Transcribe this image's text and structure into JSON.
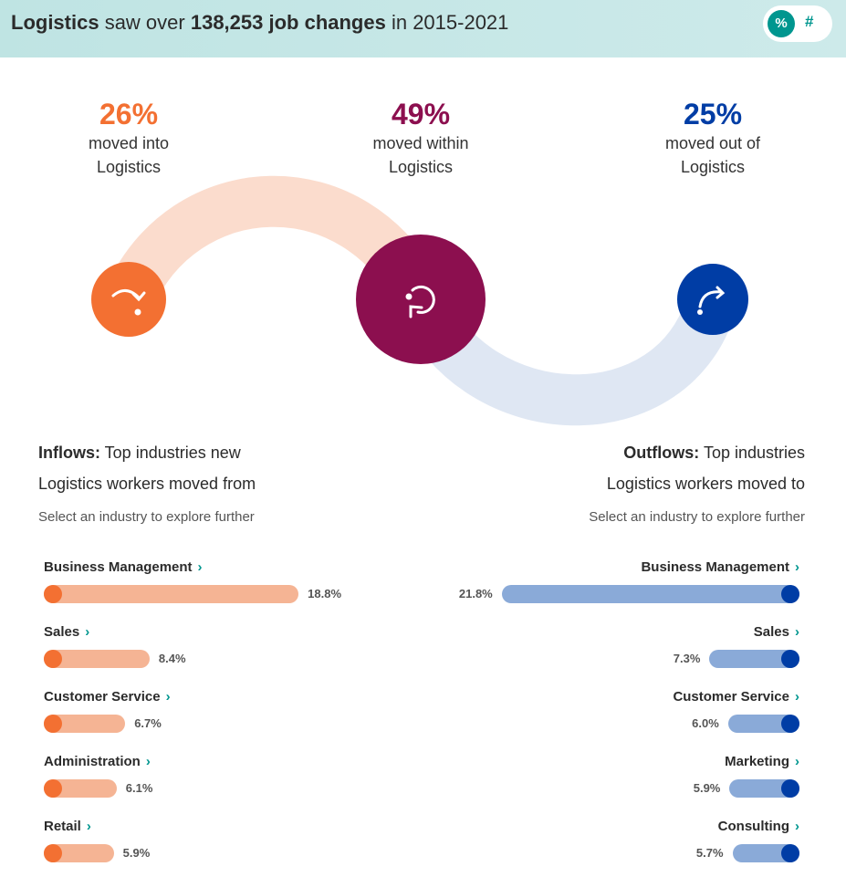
{
  "header": {
    "title_parts": [
      "Logistics",
      " saw over ",
      "138,253 job changes",
      " in 2015-2021"
    ],
    "toggle": {
      "percent": "%",
      "number": "#",
      "selected": "percent"
    }
  },
  "stats": [
    {
      "pct": "26%",
      "label1": "moved into",
      "label2": "Logistics",
      "color": "#f37032",
      "icon": "arrow-into-icon"
    },
    {
      "pct": "49%",
      "label1": "moved within",
      "label2": "Logistics",
      "color": "#8c0f4f",
      "icon": "loop-arrow-icon"
    },
    {
      "pct": "25%",
      "label1": "moved out of",
      "label2": "Logistics",
      "color": "#003da5",
      "icon": "arrow-out-icon"
    }
  ],
  "inflows": {
    "bold": "Inflows:",
    "line1": " Top industries new",
    "line2": "Logistics workers moved from",
    "sub": "Select an industry to explore further",
    "items": [
      {
        "name": "Business Management",
        "value": 18.8,
        "label": "18.8%"
      },
      {
        "name": "Sales",
        "value": 8.4,
        "label": "8.4%"
      },
      {
        "name": "Customer Service",
        "value": 6.7,
        "label": "6.7%"
      },
      {
        "name": "Administration",
        "value": 6.1,
        "label": "6.1%"
      },
      {
        "name": "Retail",
        "value": 5.9,
        "label": "5.9%"
      }
    ]
  },
  "outflows": {
    "bold": "Outflows:",
    "line1": " Top industries",
    "line2": "Logistics workers moved to",
    "sub": "Select an industry to explore further",
    "items": [
      {
        "name": "Business Management",
        "value": 21.8,
        "label": "21.8%"
      },
      {
        "name": "Sales",
        "value": 7.3,
        "label": "7.3%"
      },
      {
        "name": "Customer Service",
        "value": 6.0,
        "label": "6.0%"
      },
      {
        "name": "Marketing",
        "value": 5.9,
        "label": "5.9%"
      },
      {
        "name": "Consulting",
        "value": 5.7,
        "label": "5.7%"
      }
    ]
  },
  "colors": {
    "in_bar": "#f5b494",
    "in_dot": "#f37032",
    "out_bar": "#8aaad8",
    "out_dot": "#003da5",
    "accent": "#00968f"
  },
  "chevron": "›"
}
